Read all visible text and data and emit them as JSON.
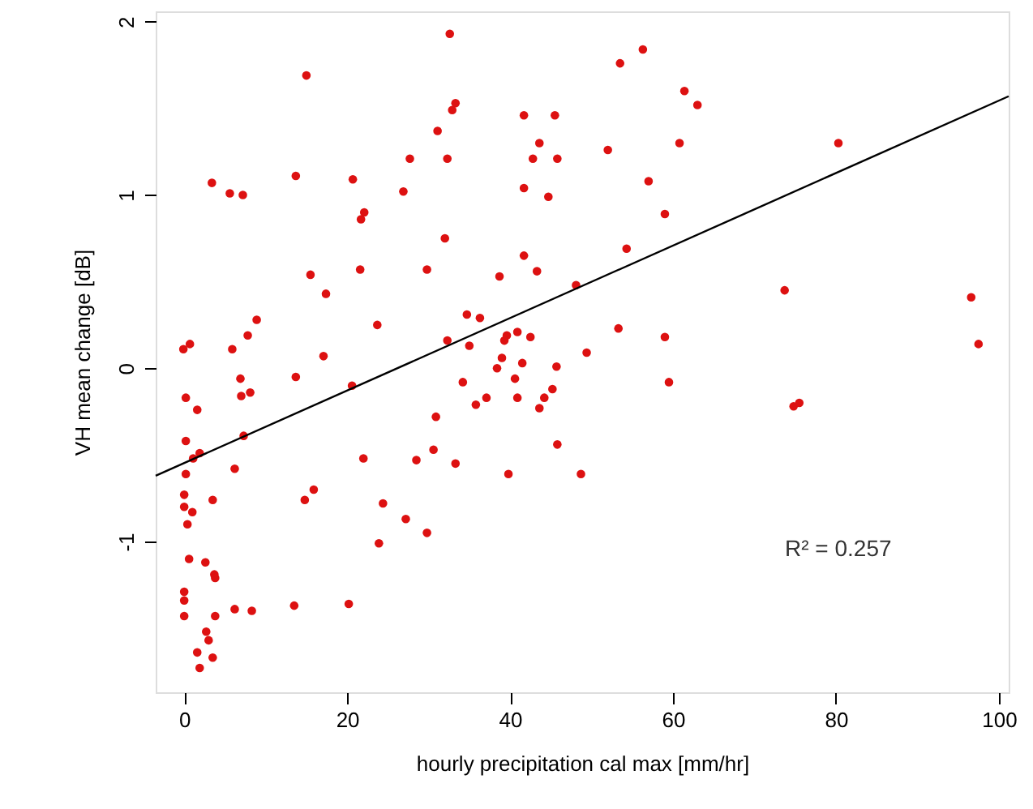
{
  "chart_data": {
    "type": "scatter",
    "xlabel": "hourly precipitation cal max [mm/hr]",
    "ylabel": "VH mean change [dB]",
    "xlim": [
      -3.5,
      101.2
    ],
    "ylim": [
      -1.87,
      2.06
    ],
    "xticks": [
      0,
      20,
      40,
      60,
      80,
      100
    ],
    "yticks": [
      -1,
      0,
      1,
      2
    ],
    "grid": false,
    "legend": false,
    "marker": "circle",
    "annotations": [
      "R² = 0.257"
    ],
    "series": [
      {
        "color": "#dd1111",
        "x": [
          15.0,
          3.4,
          5.6,
          7.2,
          13.7,
          20.7,
          26.9,
          27.7,
          31.1,
          22.1,
          21.7,
          15.5,
          17.4,
          21.6,
          29.8,
          8.9,
          7.8,
          23.7,
          -0.1,
          0.7,
          5.9,
          17.1,
          32.6,
          53.5,
          56.3,
          33.3,
          32.9,
          32.3,
          41.7,
          45.5,
          43.6,
          42.8,
          45.8,
          52.0,
          61.4,
          63.0,
          60.8,
          41.7,
          44.7,
          57.0,
          59.0,
          32.0,
          41.7,
          43.3,
          38.7,
          54.3,
          48.1,
          34.7,
          36.3,
          32.3,
          35.0,
          39.6,
          39.3,
          40.9,
          42.5,
          53.3,
          59.0,
          49.4,
          39.0,
          38.4,
          41.5,
          45.7,
          80.3,
          73.7,
          96.6,
          97.5,
          6.9,
          13.7,
          0.2,
          1.6,
          7.0,
          8.1,
          20.6,
          0.2,
          7.3,
          1.1,
          1.9,
          0.2,
          6.2,
          22.0,
          28.5,
          30.6,
          30.9,
          0.0,
          0.0,
          1.0,
          0.4,
          3.5,
          15.9,
          14.8,
          24.4,
          27.2,
          29.8,
          23.9,
          0.6,
          2.6,
          3.7,
          3.8,
          0.0,
          0.0,
          0.0,
          3.8,
          6.2,
          8.3,
          13.5,
          20.2,
          2.7,
          3.0,
          1.6,
          3.5,
          1.9,
          34.2,
          40.6,
          37.1,
          35.8,
          40.9,
          45.2,
          44.2,
          43.6,
          59.5,
          33.3,
          39.8,
          45.8,
          48.7,
          74.8,
          75.5
        ],
        "values": [
          1.69,
          1.07,
          1.01,
          1.0,
          1.11,
          1.09,
          1.02,
          1.21,
          1.37,
          0.9,
          0.86,
          0.54,
          0.43,
          0.57,
          0.57,
          0.28,
          0.19,
          0.25,
          0.11,
          0.14,
          0.11,
          0.07,
          1.93,
          1.76,
          1.84,
          1.53,
          1.49,
          1.21,
          1.46,
          1.46,
          1.3,
          1.21,
          1.21,
          1.26,
          1.6,
          1.52,
          1.3,
          1.04,
          0.99,
          1.08,
          0.89,
          0.75,
          0.65,
          0.56,
          0.53,
          0.69,
          0.48,
          0.31,
          0.29,
          0.16,
          0.13,
          0.19,
          0.16,
          0.21,
          0.18,
          0.23,
          0.18,
          0.09,
          0.06,
          0.0,
          0.03,
          0.01,
          1.3,
          0.45,
          0.41,
          0.14,
          -0.06,
          -0.05,
          -0.17,
          -0.24,
          -0.16,
          -0.14,
          -0.1,
          -0.42,
          -0.39,
          -0.52,
          -0.49,
          -0.61,
          -0.58,
          -0.52,
          -0.53,
          -0.47,
          -0.28,
          -0.73,
          -0.8,
          -0.83,
          -0.9,
          -0.76,
          -0.7,
          -0.76,
          -0.78,
          -0.87,
          -0.95,
          -1.01,
          -1.1,
          -1.12,
          -1.19,
          -1.21,
          -1.29,
          -1.34,
          -1.43,
          -1.43,
          -1.39,
          -1.4,
          -1.37,
          -1.36,
          -1.52,
          -1.57,
          -1.64,
          -1.67,
          -1.73,
          -0.08,
          -0.06,
          -0.17,
          -0.21,
          -0.17,
          -0.12,
          -0.17,
          -0.23,
          -0.08,
          -0.55,
          -0.61,
          -0.44,
          -0.61,
          -0.22,
          -0.2
        ]
      },
      {
        "type": "line",
        "marker": "none",
        "line_style": "solid",
        "color": "#000000",
        "x": [
          -3.5,
          101.2
        ],
        "values": [
          -0.62,
          1.57
        ]
      }
    ]
  }
}
